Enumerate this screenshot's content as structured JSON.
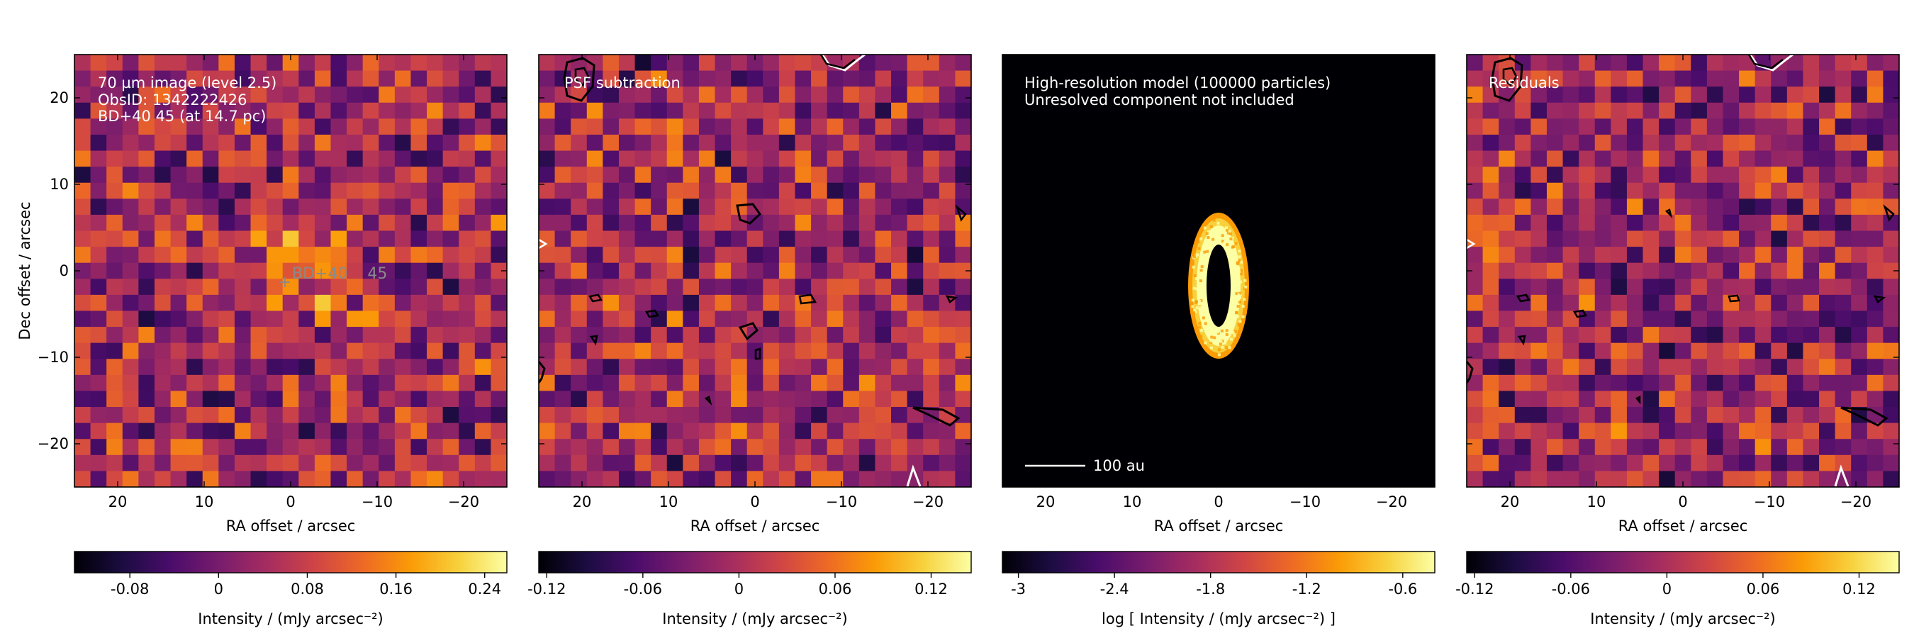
{
  "chart_data": [
    {
      "type": "heatmap",
      "panel": "observed image",
      "annotations": [
        "70 µm image (level 2.5)",
        "ObsID: 1342222426",
        "BD+40 45 (at 14.7 pc)"
      ],
      "star_label": "BD+40    45",
      "xlabel": "RA offset / arcsec",
      "ylabel": "Dec offset / arcsec",
      "xlim": [
        25,
        -25
      ],
      "ylim": [
        -25,
        25
      ],
      "xticks": [
        20,
        10,
        0,
        -10,
        -20
      ],
      "xtick_labels": [
        "20",
        "10",
        "0",
        "−10",
        "−20"
      ],
      "yticks": [
        20,
        10,
        0,
        -10,
        -20
      ],
      "ytick_labels": [
        "20",
        "10",
        "0",
        "−10",
        "−20"
      ],
      "colorbar": {
        "min": -0.13,
        "max": 0.26,
        "ticks": [
          -0.08,
          0,
          0.08,
          0.16,
          0.24
        ],
        "tick_labels": [
          "-0.08",
          "0",
          "0.08",
          "0.16",
          "0.24"
        ],
        "label": "Intensity / (mJy arcsec⁻²)"
      }
    },
    {
      "type": "heatmap",
      "panel": "PSF subtraction",
      "annotations": [
        "PSF subtraction"
      ],
      "xlabel": "RA offset / arcsec",
      "xlim": [
        25,
        -25
      ],
      "ylim": [
        -25,
        25
      ],
      "xticks": [
        20,
        10,
        0,
        -10,
        -20
      ],
      "xtick_labels": [
        "20",
        "10",
        "0",
        "−10",
        "−20"
      ],
      "colorbar": {
        "min": -0.125,
        "max": 0.145,
        "ticks": [
          -0.12,
          -0.06,
          0,
          0.06,
          0.12
        ],
        "tick_labels": [
          "-0.12",
          "-0.06",
          "0",
          "0.06",
          "0.12"
        ],
        "label": "Intensity / (mJy arcsec⁻²)"
      }
    },
    {
      "type": "heatmap",
      "panel": "model",
      "annotations": [
        "High-resolution model (100000 particles)",
        "Unresolved component not included"
      ],
      "scalebar_label": "100 au",
      "xlabel": "RA offset / arcsec",
      "xlim": [
        25,
        -25
      ],
      "ylim": [
        -25,
        25
      ],
      "xticks": [
        20,
        10,
        0,
        -10,
        -20
      ],
      "xtick_labels": [
        "20",
        "10",
        "0",
        "−10",
        "−20"
      ],
      "colorbar": {
        "min": -3.1,
        "max": -0.4,
        "ticks": [
          -3,
          -2.4,
          -1.8,
          -1.2,
          -0.6
        ],
        "tick_labels": [
          "-3",
          "-2.4",
          "-1.8",
          "-1.2",
          "-0.6"
        ],
        "label": "log [ Intensity / (mJy arcsec⁻²) ]"
      }
    },
    {
      "type": "heatmap",
      "panel": "residuals",
      "annotations": [
        "Residuals"
      ],
      "xlabel": "RA offset / arcsec",
      "xlim": [
        25,
        -25
      ],
      "ylim": [
        -25,
        25
      ],
      "xticks": [
        20,
        10,
        0,
        -10,
        -20
      ],
      "xtick_labels": [
        "20",
        "10",
        "0",
        "−10",
        "−20"
      ],
      "colorbar": {
        "min": -0.125,
        "max": 0.145,
        "ticks": [
          -0.12,
          -0.06,
          0,
          0.06,
          0.12
        ],
        "tick_labels": [
          "-0.12",
          "-0.06",
          "0",
          "0.06",
          "0.12"
        ],
        "label": "Intensity / (mJy arcsec⁻²)"
      }
    }
  ],
  "colors": {
    "background": "#ffffff",
    "cmap": [
      "#000004",
      "#1b0c41",
      "#4a0c6b",
      "#781c6d",
      "#a52c60",
      "#cf4446",
      "#ed6925",
      "#fb9b06",
      "#f7d13d",
      "#fcffa4"
    ],
    "annotation": "#ffffff",
    "star_label": "#8a8a8a",
    "contour_black": "#000000",
    "contour_white": "#ffffff"
  }
}
